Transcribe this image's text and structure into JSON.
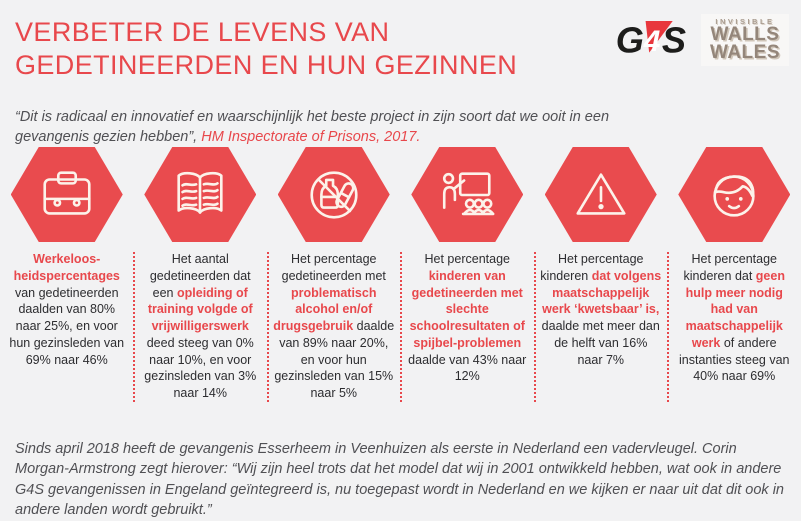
{
  "header": {
    "title_line1": "VERBETER DE LEVENS VAN",
    "title_line2": "GEDETINEERDEN EN HUN GEZINNEN",
    "quote_text": "“Dit is radicaal en innovatief en waarschijnlijk het beste project in zijn soort dat we ooit in een gevangenis gezien hebben”, ",
    "quote_source": "HM Inspectorate of Prisons, 2017."
  },
  "logos": {
    "g4s_letters": [
      "G",
      "4",
      "S"
    ],
    "iww_line1": "INVISIBLE",
    "iww_line2": "WALLS",
    "iww_line3": "WALES"
  },
  "stats": [
    {
      "icon": "briefcase-icon",
      "segments": [
        {
          "text": "Werkeloos-heidspercentages",
          "style": "red"
        },
        {
          "text": " van gedetineerden daalden van 80% naar 25%, en voor hun gezinsleden van 69% naar 46%",
          "style": "plain"
        }
      ]
    },
    {
      "icon": "open-book-icon",
      "segments": [
        {
          "text": "Het aantal gedetineerden dat een ",
          "style": "plain"
        },
        {
          "text": "opleiding of training volgde of vrijwilligerswerk",
          "style": "red"
        },
        {
          "text": " deed steeg van 0% naar 10%, en voor gezinsleden van 3% naar 14%",
          "style": "plain"
        }
      ]
    },
    {
      "icon": "no-alcohol-drugs-icon",
      "segments": [
        {
          "text": "Het percentage gedetineerden met ",
          "style": "plain"
        },
        {
          "text": "problematisch alcohol en/of drugsgebruik",
          "style": "red"
        },
        {
          "text": " daalde van 89% naar 20%, en voor hun gezinsleden van 15% naar 5%",
          "style": "plain"
        }
      ]
    },
    {
      "icon": "classroom-icon",
      "segments": [
        {
          "text": "Het percentage ",
          "style": "plain"
        },
        {
          "text": "kinderen van gedetineerden met slechte schoolresultaten of spijbel-problemen",
          "style": "red"
        },
        {
          "text": " daalde van 43% naar 12%",
          "style": "plain"
        }
      ]
    },
    {
      "icon": "warning-icon",
      "segments": [
        {
          "text": "Het percentage kinderen ",
          "style": "plain"
        },
        {
          "text": "dat volgens maatschappelijk werk ‘kwetsbaar’ is,",
          "style": "red"
        },
        {
          "text": " daalde met meer dan de helft van 16% naar 7%",
          "style": "plain"
        }
      ]
    },
    {
      "icon": "child-face-icon",
      "segments": [
        {
          "text": "Het percentage kinderen dat ",
          "style": "plain"
        },
        {
          "text": "geen hulp meer nodig had van maatschappelijk werk",
          "style": "red"
        },
        {
          "text": " of andere instanties steeg van 40% naar 69%",
          "style": "plain"
        }
      ]
    }
  ],
  "footer": {
    "text": "Sinds april 2018 heeft de gevangenis Esserheem in Veenhuizen als eerste in Nederland een vadervleugel. Corin Morgan-Armstrong zegt hierover: “Wij zijn heel trots dat het model dat wij in 2001 ontwikkeld hebben, wat ook in andere G4S gevangenissen in Engeland geïntegreerd is, nu toegepast wordt in Nederland en we kijken er naar uit dat dit ook in andere landen wordt gebruikt.”"
  },
  "colors": {
    "accent_red": "#E8484C",
    "hexagon_red": "#E94B4E",
    "g4s_red": "#E8373D",
    "background": "#F2F2F3",
    "text_dark": "#2D2D30",
    "quote_gray": "#505054"
  }
}
